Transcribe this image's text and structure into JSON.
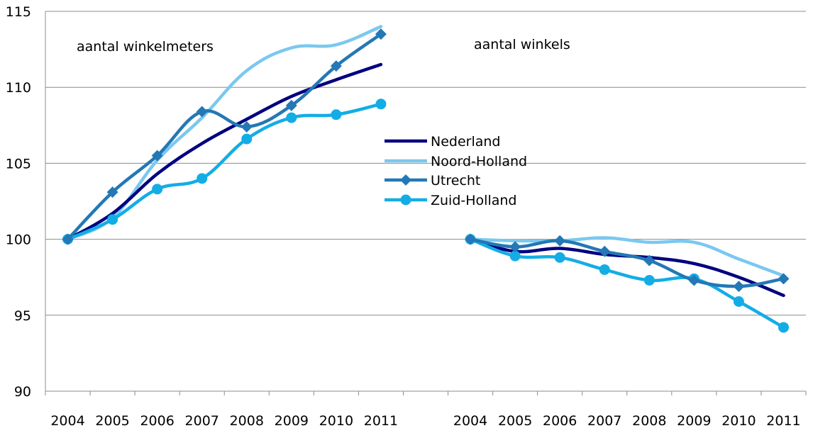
{
  "chart_data": {
    "type": "line",
    "ylim": [
      90,
      115
    ],
    "yticks": [
      90,
      95,
      100,
      105,
      110,
      115
    ],
    "grid": true,
    "legend_position": "center",
    "panels": [
      {
        "label": "aantal winkelmeters",
        "x": [
          "2004",
          "2005",
          "2006",
          "2007",
          "2008",
          "2009",
          "2010",
          "2011"
        ],
        "series": [
          {
            "name": "Nederland",
            "values": [
              100,
              101.7,
              104.3,
              106.3,
              107.9,
              109.4,
              110.5,
              111.5
            ]
          },
          {
            "name": "Noord-Holland",
            "values": [
              100,
              101.4,
              105.2,
              108.0,
              111.1,
              112.6,
              112.8,
              114.0
            ]
          },
          {
            "name": "Utrecht",
            "values": [
              100,
              103.1,
              105.5,
              108.4,
              107.4,
              108.8,
              111.4,
              113.5
            ]
          },
          {
            "name": "Zuid-Holland",
            "values": [
              100,
              101.3,
              103.3,
              104.0,
              106.6,
              108.0,
              108.2,
              108.9
            ]
          }
        ]
      },
      {
        "label": "aantal winkels",
        "x": [
          "2004",
          "2005",
          "2006",
          "2007",
          "2008",
          "2009",
          "2010",
          "2011"
        ],
        "series": [
          {
            "name": "Nederland",
            "values": [
              100,
              99.2,
              99.4,
              99.0,
              98.8,
              98.4,
              97.5,
              96.3
            ]
          },
          {
            "name": "Noord-Holland",
            "values": [
              100,
              99.9,
              99.9,
              100.1,
              99.8,
              99.8,
              98.7,
              97.6
            ]
          },
          {
            "name": "Utrecht",
            "values": [
              100,
              99.5,
              99.9,
              99.2,
              98.6,
              97.3,
              96.9,
              97.4
            ]
          },
          {
            "name": "Zuid-Holland",
            "values": [
              100,
              98.9,
              98.8,
              98.0,
              97.3,
              97.4,
              95.9,
              94.2
            ]
          }
        ]
      }
    ],
    "legend": [
      "Nederland",
      "Noord-Holland",
      "Utrecht",
      "Zuid-Holland"
    ],
    "colors": {
      "Nederland": "#000080",
      "Noord-Holland": "#7ac8ef",
      "Utrecht": "#2378b5",
      "Zuid-Holland": "#13ade6",
      "grid": "#8c8c8c"
    },
    "markers": {
      "Nederland": "none",
      "Noord-Holland": "none",
      "Utrecht": "diamond",
      "Zuid-Holland": "circle"
    }
  }
}
